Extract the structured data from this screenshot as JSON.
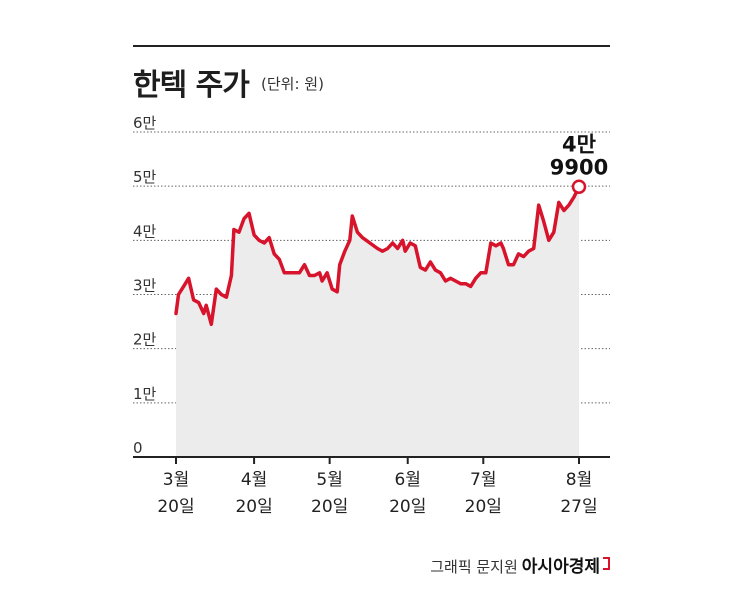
{
  "chart_data": {
    "type": "area",
    "title": "한텍 주가",
    "unit_label": "(단위: 원)",
    "y_ticks": [
      {
        "value": 0,
        "label": "0"
      },
      {
        "value": 10000,
        "label": "1만"
      },
      {
        "value": 20000,
        "label": "2만"
      },
      {
        "value": 30000,
        "label": "3만"
      },
      {
        "value": 40000,
        "label": "4만"
      },
      {
        "value": 50000,
        "label": "5만"
      },
      {
        "value": 60000,
        "label": "6만"
      }
    ],
    "ylim": [
      0,
      60000
    ],
    "x_ticks": [
      {
        "date": "2024-03-20",
        "month": "3월",
        "day": "20일"
      },
      {
        "date": "2024-04-20",
        "month": "4월",
        "day": "20일"
      },
      {
        "date": "2024-05-20",
        "month": "5월",
        "day": "20일"
      },
      {
        "date": "2024-06-20",
        "month": "6월",
        "day": "20일"
      },
      {
        "date": "2024-07-20",
        "month": "7월",
        "day": "20일"
      },
      {
        "date": "2024-08-27",
        "month": "8월",
        "day": "27일"
      }
    ],
    "xlim": [
      "2024-03-20",
      "2024-08-27"
    ],
    "annotation": {
      "line1": "4만",
      "line2": "9900",
      "value": 49900,
      "date": "2024-08-27"
    },
    "grid": "dotted-horizontal",
    "line_color": "#d7142b",
    "fill_color": "#ececec",
    "series": [
      {
        "points": [
          [
            "2024-03-20",
            26500
          ],
          [
            "2024-03-21",
            30000
          ],
          [
            "2024-03-23",
            31500
          ],
          [
            "2024-03-25",
            33000
          ],
          [
            "2024-03-27",
            29000
          ],
          [
            "2024-03-29",
            28500
          ],
          [
            "2024-03-31",
            26500
          ],
          [
            "2024-04-01",
            28000
          ],
          [
            "2024-04-03",
            24500
          ],
          [
            "2024-04-05",
            31000
          ],
          [
            "2024-04-07",
            30000
          ],
          [
            "2024-04-09",
            29500
          ],
          [
            "2024-04-11",
            33500
          ],
          [
            "2024-04-12",
            42000
          ],
          [
            "2024-04-14",
            41500
          ],
          [
            "2024-04-16",
            44000
          ],
          [
            "2024-04-18",
            45000
          ],
          [
            "2024-04-20",
            41000
          ],
          [
            "2024-04-22",
            40000
          ],
          [
            "2024-04-24",
            39500
          ],
          [
            "2024-04-26",
            40500
          ],
          [
            "2024-04-28",
            37500
          ],
          [
            "2024-04-30",
            36500
          ],
          [
            "2024-05-02",
            34000
          ],
          [
            "2024-05-05",
            34000
          ],
          [
            "2024-05-08",
            34000
          ],
          [
            "2024-05-10",
            35500
          ],
          [
            "2024-05-12",
            33500
          ],
          [
            "2024-05-14",
            33500
          ],
          [
            "2024-05-16",
            34000
          ],
          [
            "2024-05-17",
            32500
          ],
          [
            "2024-05-19",
            34000
          ],
          [
            "2024-05-21",
            31000
          ],
          [
            "2024-05-23",
            30500
          ],
          [
            "2024-05-24",
            35500
          ],
          [
            "2024-05-26",
            38000
          ],
          [
            "2024-05-28",
            40000
          ],
          [
            "2024-05-29",
            44500
          ],
          [
            "2024-05-31",
            41500
          ],
          [
            "2024-06-02",
            40500
          ],
          [
            "2024-06-05",
            39500
          ],
          [
            "2024-06-08",
            38500
          ],
          [
            "2024-06-10",
            38000
          ],
          [
            "2024-06-12",
            38500
          ],
          [
            "2024-06-14",
            39500
          ],
          [
            "2024-06-16",
            38500
          ],
          [
            "2024-06-18",
            40000
          ],
          [
            "2024-06-19",
            38000
          ],
          [
            "2024-06-21",
            39500
          ],
          [
            "2024-06-23",
            39000
          ],
          [
            "2024-06-25",
            35000
          ],
          [
            "2024-06-27",
            34500
          ],
          [
            "2024-06-29",
            36000
          ],
          [
            "2024-07-01",
            34500
          ],
          [
            "2024-07-03",
            34000
          ],
          [
            "2024-07-05",
            32500
          ],
          [
            "2024-07-07",
            33000
          ],
          [
            "2024-07-09",
            32500
          ],
          [
            "2024-07-11",
            32000
          ],
          [
            "2024-07-13",
            32000
          ],
          [
            "2024-07-15",
            31500
          ],
          [
            "2024-07-17",
            33000
          ],
          [
            "2024-07-19",
            34000
          ],
          [
            "2024-07-21",
            34000
          ],
          [
            "2024-07-23",
            39500
          ],
          [
            "2024-07-25",
            39000
          ],
          [
            "2024-07-27",
            39500
          ],
          [
            "2024-07-28",
            38500
          ],
          [
            "2024-07-30",
            35500
          ],
          [
            "2024-08-01",
            35500
          ],
          [
            "2024-08-03",
            37500
          ],
          [
            "2024-08-05",
            37000
          ],
          [
            "2024-08-07",
            38000
          ],
          [
            "2024-08-09",
            38500
          ],
          [
            "2024-08-11",
            46500
          ],
          [
            "2024-08-13",
            43500
          ],
          [
            "2024-08-15",
            40000
          ],
          [
            "2024-08-17",
            41500
          ],
          [
            "2024-08-19",
            47000
          ],
          [
            "2024-08-21",
            45500
          ],
          [
            "2024-08-23",
            46500
          ],
          [
            "2024-08-25",
            48000
          ],
          [
            "2024-08-27",
            49900
          ]
        ]
      }
    ]
  },
  "credit": {
    "text": "그래픽 문지원",
    "brand": "아시아경제"
  }
}
